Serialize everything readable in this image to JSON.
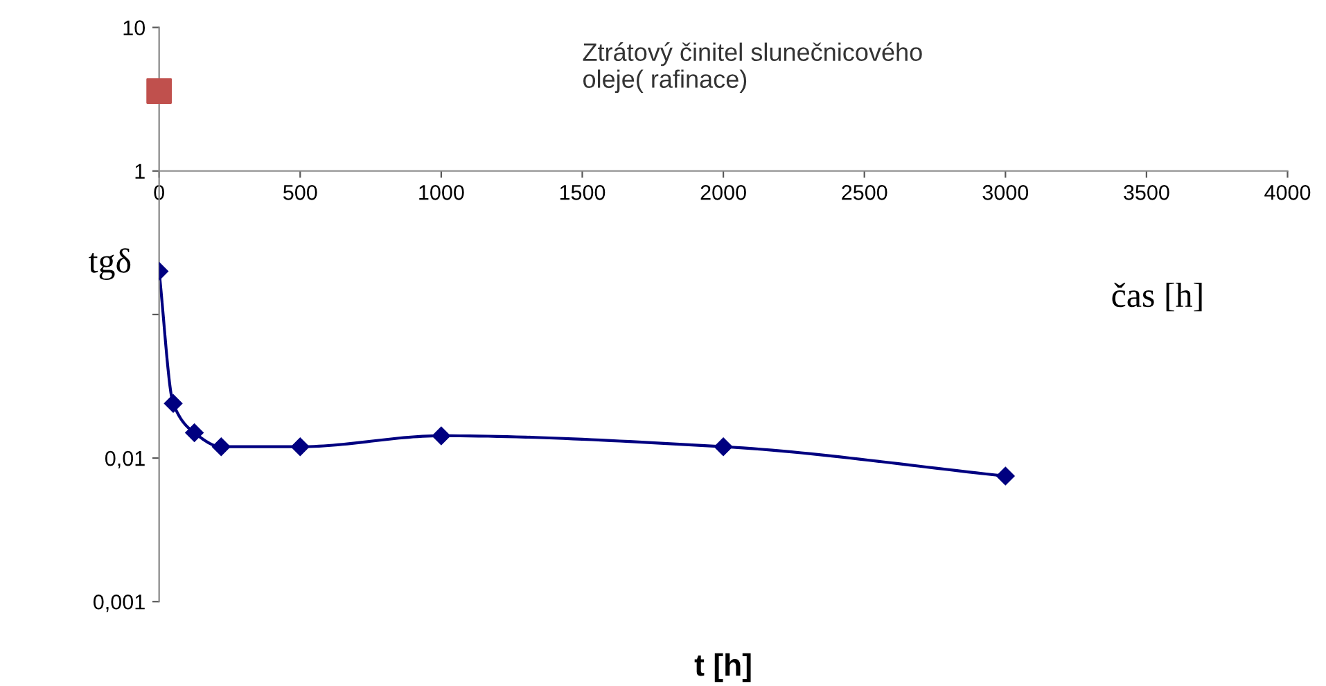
{
  "chart_data": {
    "type": "line",
    "title": "Ztrátový činitel slunečnicového\noleje( rafinace)",
    "xlabel": "t [h]",
    "ylabel": "tgδ",
    "annotations": [
      "čas [h]"
    ],
    "log": "y",
    "grid": false,
    "legend": false,
    "xlim": [
      0,
      4000
    ],
    "xticks": [
      0,
      500,
      1000,
      1500,
      2000,
      2500,
      3000,
      3500,
      4000
    ],
    "ylim": [
      0.001,
      10
    ],
    "yticks": [
      {
        "value": 0.001,
        "label": "0,001"
      },
      {
        "value": 0.01,
        "label": "0,01"
      },
      {
        "value": 0.1,
        "label": null
      },
      1,
      10
    ],
    "series": [
      {
        "color": "#000080",
        "marker": "diamond",
        "x": [
          0,
          50,
          125,
          220,
          500,
          1000,
          2000,
          3000
        ],
        "values": [
          0.2,
          0.024,
          0.015,
          0.012,
          0.012,
          0.0143,
          0.012,
          0.0075
        ]
      },
      {
        "type": "scatter",
        "color": "#c0504d",
        "marker": "square",
        "x": [
          0
        ],
        "values": [
          3.6
        ]
      }
    ]
  }
}
